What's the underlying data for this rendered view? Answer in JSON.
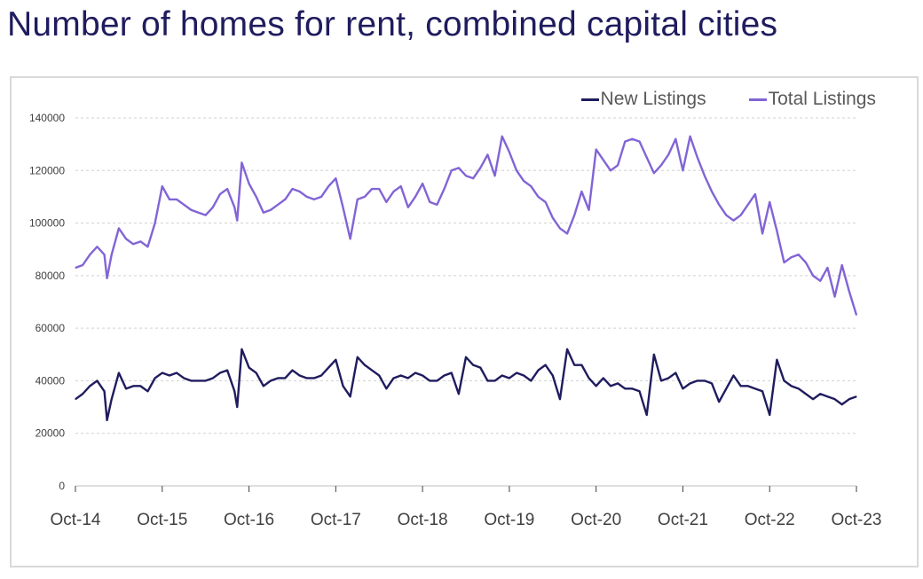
{
  "title": "Number of homes for rent, combined capital cities",
  "chart_data": {
    "type": "line",
    "ylim": [
      0,
      140000
    ],
    "yticks": [
      0,
      20000,
      40000,
      60000,
      80000,
      100000,
      120000,
      140000
    ],
    "xticks": [
      "Oct-14",
      "Oct-15",
      "Oct-16",
      "Oct-17",
      "Oct-18",
      "Oct-19",
      "Oct-20",
      "Oct-21",
      "Oct-22",
      "Oct-23"
    ],
    "x_range": [
      "2014-10",
      "2023-10"
    ],
    "grid": "horizontal dashed",
    "legend_position": "top-right",
    "series": [
      {
        "name": "New Listings",
        "color": "#1f1c5e",
        "points": [
          [
            "2014-10",
            33000
          ],
          [
            "2014-11",
            35000
          ],
          [
            "2014-12",
            38000
          ],
          [
            "2015-01",
            40000
          ],
          [
            "2015-02",
            36000
          ],
          [
            "2015-02",
            25000
          ],
          [
            "2015-03",
            33000
          ],
          [
            "2015-04",
            43000
          ],
          [
            "2015-05",
            37000
          ],
          [
            "2015-06",
            38000
          ],
          [
            "2015-07",
            38000
          ],
          [
            "2015-08",
            36000
          ],
          [
            "2015-09",
            41000
          ],
          [
            "2015-10",
            43000
          ],
          [
            "2015-11",
            42000
          ],
          [
            "2015-12",
            43000
          ],
          [
            "2016-01",
            41000
          ],
          [
            "2016-02",
            40000
          ],
          [
            "2016-03",
            40000
          ],
          [
            "2016-04",
            40000
          ],
          [
            "2016-05",
            41000
          ],
          [
            "2016-06",
            43000
          ],
          [
            "2016-07",
            44000
          ],
          [
            "2016-08",
            36000
          ],
          [
            "2016-08",
            30000
          ],
          [
            "2016-09",
            52000
          ],
          [
            "2016-10",
            45000
          ],
          [
            "2016-11",
            43000
          ],
          [
            "2016-12",
            38000
          ],
          [
            "2017-01",
            40000
          ],
          [
            "2017-02",
            41000
          ],
          [
            "2017-03",
            41000
          ],
          [
            "2017-04",
            44000
          ],
          [
            "2017-05",
            42000
          ],
          [
            "2017-06",
            41000
          ],
          [
            "2017-07",
            41000
          ],
          [
            "2017-08",
            42000
          ],
          [
            "2017-09",
            45000
          ],
          [
            "2017-10",
            48000
          ],
          [
            "2017-11",
            38000
          ],
          [
            "2017-12",
            34000
          ],
          [
            "2018-01",
            49000
          ],
          [
            "2018-02",
            46000
          ],
          [
            "2018-03",
            44000
          ],
          [
            "2018-04",
            42000
          ],
          [
            "2018-05",
            37000
          ],
          [
            "2018-06",
            41000
          ],
          [
            "2018-07",
            42000
          ],
          [
            "2018-08",
            41000
          ],
          [
            "2018-09",
            43000
          ],
          [
            "2018-10",
            42000
          ],
          [
            "2018-11",
            40000
          ],
          [
            "2018-12",
            40000
          ],
          [
            "2019-01",
            42000
          ],
          [
            "2019-02",
            43000
          ],
          [
            "2019-03",
            35000
          ],
          [
            "2019-04",
            49000
          ],
          [
            "2019-05",
            46000
          ],
          [
            "2019-06",
            45000
          ],
          [
            "2019-07",
            40000
          ],
          [
            "2019-08",
            40000
          ],
          [
            "2019-09",
            42000
          ],
          [
            "2019-10",
            41000
          ],
          [
            "2019-11",
            43000
          ],
          [
            "2019-12",
            42000
          ],
          [
            "2020-01",
            40000
          ],
          [
            "2020-02",
            44000
          ],
          [
            "2020-03",
            46000
          ],
          [
            "2020-04",
            42000
          ],
          [
            "2020-05",
            33000
          ],
          [
            "2020-06",
            52000
          ],
          [
            "2020-07",
            46000
          ],
          [
            "2020-08",
            46000
          ],
          [
            "2020-09",
            41000
          ],
          [
            "2020-10",
            38000
          ],
          [
            "2020-11",
            41000
          ],
          [
            "2020-12",
            38000
          ],
          [
            "2021-01",
            39000
          ],
          [
            "2021-02",
            37000
          ],
          [
            "2021-03",
            37000
          ],
          [
            "2021-04",
            36000
          ],
          [
            "2021-05",
            27000
          ],
          [
            "2021-06",
            50000
          ],
          [
            "2021-07",
            40000
          ],
          [
            "2021-08",
            41000
          ],
          [
            "2021-09",
            43000
          ],
          [
            "2021-10",
            37000
          ],
          [
            "2021-11",
            39000
          ],
          [
            "2021-12",
            40000
          ],
          [
            "2022-01",
            40000
          ],
          [
            "2022-02",
            39000
          ],
          [
            "2022-03",
            32000
          ],
          [
            "2022-04",
            37000
          ],
          [
            "2022-05",
            42000
          ],
          [
            "2022-06",
            38000
          ],
          [
            "2022-07",
            38000
          ],
          [
            "2022-08",
            37000
          ],
          [
            "2022-09",
            36000
          ],
          [
            "2022-10",
            27000
          ],
          [
            "2022-11",
            48000
          ],
          [
            "2022-12",
            40000
          ],
          [
            "2023-01",
            38000
          ],
          [
            "2023-02",
            37000
          ],
          [
            "2023-03",
            35000
          ],
          [
            "2023-04",
            33000
          ],
          [
            "2023-05",
            35000
          ],
          [
            "2023-06",
            34000
          ],
          [
            "2023-07",
            33000
          ],
          [
            "2023-08",
            31000
          ],
          [
            "2023-09",
            33000
          ],
          [
            "2023-10",
            34000
          ]
        ]
      },
      {
        "name": "Total Listings",
        "color": "#8264d6",
        "points": [
          [
            "2014-10",
            83000
          ],
          [
            "2014-11",
            84000
          ],
          [
            "2014-12",
            88000
          ],
          [
            "2015-01",
            91000
          ],
          [
            "2015-02",
            88000
          ],
          [
            "2015-02",
            79000
          ],
          [
            "2015-03",
            88000
          ],
          [
            "2015-04",
            98000
          ],
          [
            "2015-05",
            94000
          ],
          [
            "2015-06",
            92000
          ],
          [
            "2015-07",
            93000
          ],
          [
            "2015-08",
            91000
          ],
          [
            "2015-09",
            100000
          ],
          [
            "2015-10",
            114000
          ],
          [
            "2015-11",
            109000
          ],
          [
            "2015-12",
            109000
          ],
          [
            "2016-01",
            107000
          ],
          [
            "2016-02",
            105000
          ],
          [
            "2016-03",
            104000
          ],
          [
            "2016-04",
            103000
          ],
          [
            "2016-05",
            106000
          ],
          [
            "2016-06",
            111000
          ],
          [
            "2016-07",
            113000
          ],
          [
            "2016-08",
            106000
          ],
          [
            "2016-08",
            101000
          ],
          [
            "2016-09",
            123000
          ],
          [
            "2016-10",
            115000
          ],
          [
            "2016-11",
            110000
          ],
          [
            "2016-12",
            104000
          ],
          [
            "2017-01",
            105000
          ],
          [
            "2017-02",
            107000
          ],
          [
            "2017-03",
            109000
          ],
          [
            "2017-04",
            113000
          ],
          [
            "2017-05",
            112000
          ],
          [
            "2017-06",
            110000
          ],
          [
            "2017-07",
            109000
          ],
          [
            "2017-08",
            110000
          ],
          [
            "2017-09",
            114000
          ],
          [
            "2017-10",
            117000
          ],
          [
            "2017-11",
            106000
          ],
          [
            "2017-12",
            94000
          ],
          [
            "2018-01",
            109000
          ],
          [
            "2018-02",
            110000
          ],
          [
            "2018-03",
            113000
          ],
          [
            "2018-04",
            113000
          ],
          [
            "2018-05",
            108000
          ],
          [
            "2018-06",
            112000
          ],
          [
            "2018-07",
            114000
          ],
          [
            "2018-08",
            106000
          ],
          [
            "2018-09",
            110000
          ],
          [
            "2018-10",
            115000
          ],
          [
            "2018-11",
            108000
          ],
          [
            "2018-12",
            107000
          ],
          [
            "2019-01",
            113000
          ],
          [
            "2019-02",
            120000
          ],
          [
            "2019-03",
            121000
          ],
          [
            "2019-04",
            118000
          ],
          [
            "2019-05",
            117000
          ],
          [
            "2019-06",
            121000
          ],
          [
            "2019-07",
            126000
          ],
          [
            "2019-08",
            118000
          ],
          [
            "2019-09",
            133000
          ],
          [
            "2019-10",
            127000
          ],
          [
            "2019-11",
            120000
          ],
          [
            "2019-12",
            116000
          ],
          [
            "2020-01",
            114000
          ],
          [
            "2020-02",
            110000
          ],
          [
            "2020-03",
            108000
          ],
          [
            "2020-04",
            102000
          ],
          [
            "2020-05",
            98000
          ],
          [
            "2020-06",
            96000
          ],
          [
            "2020-07",
            103000
          ],
          [
            "2020-08",
            112000
          ],
          [
            "2020-09",
            105000
          ],
          [
            "2020-10",
            128000
          ],
          [
            "2020-11",
            124000
          ],
          [
            "2020-12",
            120000
          ],
          [
            "2021-01",
            122000
          ],
          [
            "2021-02",
            131000
          ],
          [
            "2021-03",
            132000
          ],
          [
            "2021-04",
            131000
          ],
          [
            "2021-05",
            125000
          ],
          [
            "2021-06",
            119000
          ],
          [
            "2021-07",
            122000
          ],
          [
            "2021-08",
            126000
          ],
          [
            "2021-09",
            132000
          ],
          [
            "2021-10",
            120000
          ],
          [
            "2021-11",
            133000
          ],
          [
            "2021-12",
            125000
          ],
          [
            "2022-01",
            118000
          ],
          [
            "2022-02",
            112000
          ],
          [
            "2022-03",
            107000
          ],
          [
            "2022-04",
            103000
          ],
          [
            "2022-05",
            101000
          ],
          [
            "2022-06",
            103000
          ],
          [
            "2022-07",
            107000
          ],
          [
            "2022-08",
            111000
          ],
          [
            "2022-09",
            96000
          ],
          [
            "2022-10",
            108000
          ],
          [
            "2022-11",
            97000
          ],
          [
            "2022-12",
            85000
          ],
          [
            "2023-01",
            87000
          ],
          [
            "2023-02",
            88000
          ],
          [
            "2023-03",
            85000
          ],
          [
            "2023-04",
            80000
          ],
          [
            "2023-05",
            78000
          ],
          [
            "2023-06",
            83000
          ],
          [
            "2023-07",
            72000
          ],
          [
            "2023-08",
            84000
          ],
          [
            "2023-09",
            74000
          ],
          [
            "2023-10",
            65000
          ]
        ]
      }
    ]
  }
}
